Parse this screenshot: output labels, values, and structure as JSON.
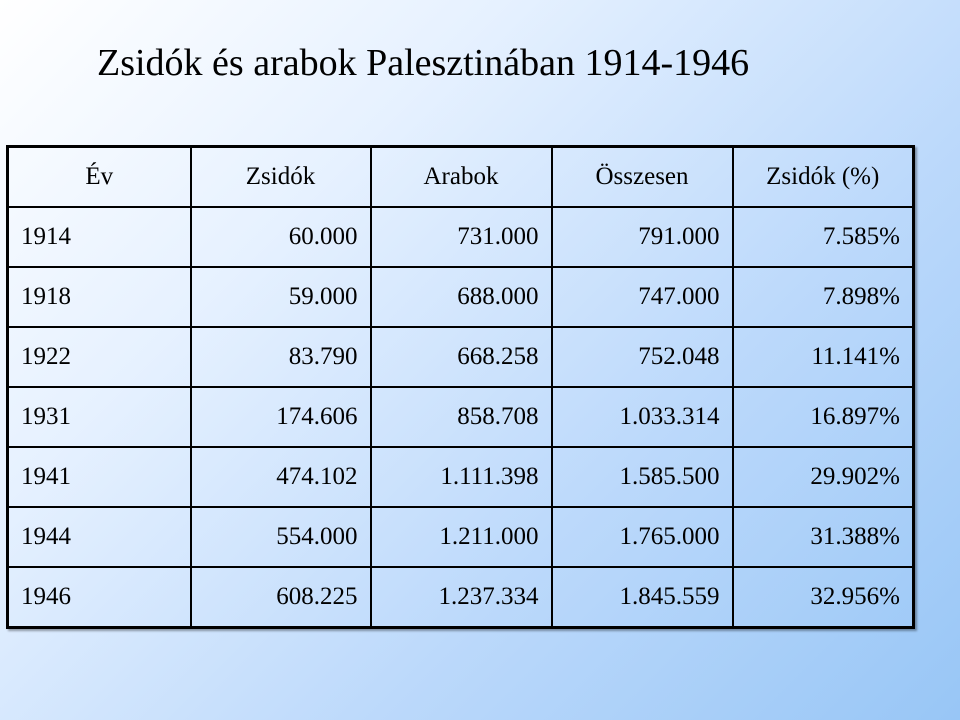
{
  "title": "Zsidók és arabok Palesztinában 1914-1946",
  "table": {
    "headers": [
      "Év",
      "Zsidók",
      "Arabok",
      "Összesen",
      "Zsidók (%)"
    ],
    "rows": [
      [
        "1914",
        "60.000",
        "731.000",
        "791.000",
        "7.585%"
      ],
      [
        "1918",
        "59.000",
        "688.000",
        "747.000",
        "7.898%"
      ],
      [
        "1922",
        "83.790",
        "668.258",
        "752.048",
        "11.141%"
      ],
      [
        "1931",
        "174.606",
        "858.708",
        "1.033.314",
        "16.897%"
      ],
      [
        "1941",
        "474.102",
        "1.111.398",
        "1.585.500",
        "29.902%"
      ],
      [
        "1944",
        "554.000",
        "1.211.000",
        "1.765.000",
        "31.388%"
      ],
      [
        "1946",
        "608.225",
        "1.237.334",
        "1.845.559",
        "32.956%"
      ]
    ]
  }
}
